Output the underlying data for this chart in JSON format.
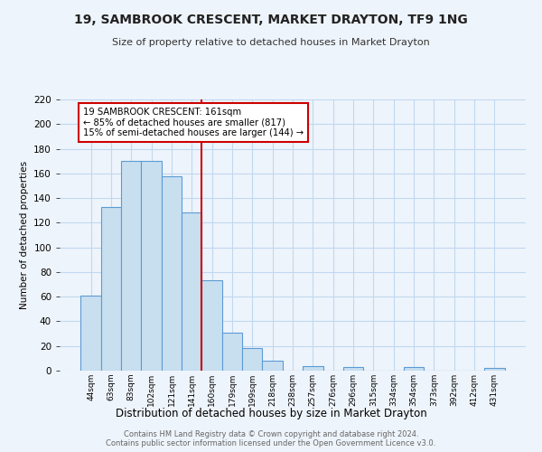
{
  "title": "19, SAMBROOK CRESCENT, MARKET DRAYTON, TF9 1NG",
  "subtitle": "Size of property relative to detached houses in Market Drayton",
  "xlabel": "Distribution of detached houses by size in Market Drayton",
  "ylabel": "Number of detached properties",
  "bar_labels": [
    "44sqm",
    "63sqm",
    "83sqm",
    "102sqm",
    "121sqm",
    "141sqm",
    "160sqm",
    "179sqm",
    "199sqm",
    "218sqm",
    "238sqm",
    "257sqm",
    "276sqm",
    "296sqm",
    "315sqm",
    "334sqm",
    "354sqm",
    "373sqm",
    "392sqm",
    "412sqm",
    "431sqm"
  ],
  "bar_values": [
    61,
    133,
    170,
    170,
    158,
    128,
    73,
    31,
    18,
    8,
    0,
    4,
    0,
    3,
    0,
    0,
    3,
    0,
    0,
    0,
    2
  ],
  "bar_color": "#c8dff0",
  "bar_edge_color": "#5b9bd5",
  "grid_color": "#c0d8f0",
  "vline_color": "#cc0000",
  "annotation_text": "19 SAMBROOK CRESCENT: 161sqm\n← 85% of detached houses are smaller (817)\n15% of semi-detached houses are larger (144) →",
  "annotation_box_color": "#ffffff",
  "annotation_box_edge": "#cc0000",
  "ylim": [
    0,
    220
  ],
  "yticks": [
    0,
    20,
    40,
    60,
    80,
    100,
    120,
    140,
    160,
    180,
    200,
    220
  ],
  "footer_line1": "Contains HM Land Registry data © Crown copyright and database right 2024.",
  "footer_line2": "Contains public sector information licensed under the Open Government Licence v3.0.",
  "background_color": "#eef4fb"
}
